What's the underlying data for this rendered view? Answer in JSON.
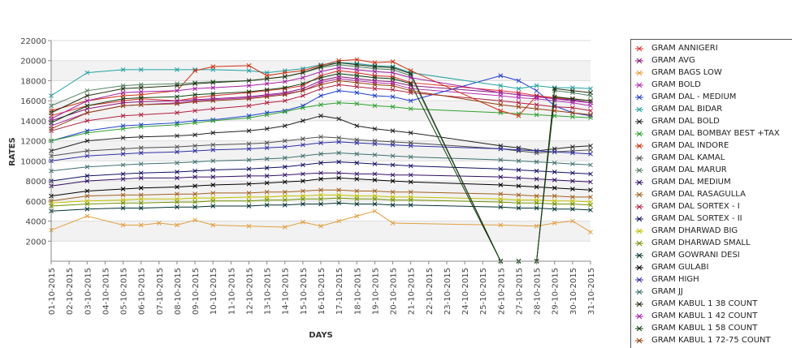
{
  "chart_data": {
    "type": "line",
    "title": "",
    "xlabel": "DAYS",
    "ylabel": "RATES",
    "ylim": [
      0,
      22000
    ],
    "yticks": [
      "2000",
      "4000",
      "6000",
      "8000",
      "10000",
      "12000",
      "14000",
      "16000",
      "18000",
      "20000",
      "22000"
    ],
    "x": [
      "01-10-2015",
      "02-10-2015",
      "03-10-2015",
      "04-10-2015",
      "05-10-2015",
      "06-10-2015",
      "07-10-2015",
      "08-10-2015",
      "09-10-2015",
      "10-10-2015",
      "11-10-2015",
      "12-10-2015",
      "13-10-2015",
      "14-10-2015",
      "15-10-2015",
      "16-10-2015",
      "17-10-2015",
      "18-10-2015",
      "19-10-2015",
      "20-10-2015",
      "21-10-2015",
      "22-10-2015",
      "23-10-2015",
      "24-10-2015",
      "25-10-2015",
      "26-10-2015",
      "27-10-2015",
      "28-10-2015",
      "29-10-2015",
      "30-10-2015",
      "31-10-2015"
    ],
    "grid": "horizontal",
    "legend_position": "right",
    "series": [
      {
        "name": "GRAM ANNIGERI",
        "color": "#e03030",
        "values": [
          14500,
          null,
          15500,
          null,
          16000,
          16200,
          null,
          16000,
          16300,
          16500,
          null,
          16800,
          17000,
          17200,
          17500,
          18500,
          19000,
          18800,
          18500,
          18400,
          17800,
          null,
          null,
          null,
          null,
          17000,
          16800,
          16500,
          16300,
          16200,
          16000
        ]
      },
      {
        "name": "GRAM AVG",
        "color": "#8a1a7a",
        "values": [
          14000,
          null,
          15200,
          null,
          15800,
          15900,
          null,
          16000,
          16100,
          16200,
          null,
          16400,
          16600,
          16800,
          17200,
          18000,
          18400,
          18200,
          18000,
          17900,
          17500,
          null,
          null,
          null,
          null,
          16800,
          16600,
          16400,
          16200,
          16100,
          15800
        ]
      },
      {
        "name": "GRAM BAGS LOW",
        "color": "#e0a040",
        "values": [
          3100,
          null,
          4500,
          null,
          3600,
          3600,
          3800,
          3600,
          4100,
          3600,
          null,
          3500,
          null,
          3400,
          3900,
          3500,
          4000,
          4500,
          5000,
          3800,
          null,
          null,
          null,
          null,
          null,
          3600,
          null,
          3500,
          3800,
          4000,
          2900
        ]
      },
      {
        "name": "GRAM BOLD",
        "color": "#b030b0",
        "values": [
          13500,
          null,
          14800,
          null,
          15500,
          15600,
          null,
          15800,
          16000,
          16100,
          null,
          16300,
          16500,
          16700,
          17000,
          17800,
          18200,
          18000,
          17800,
          17700,
          17200,
          null,
          null,
          null,
          null,
          16500,
          16300,
          16200,
          16000,
          15800,
          15500
        ]
      },
      {
        "name": "GRAM DAL - MEDIUM",
        "color": "#2040d0",
        "values": [
          12000,
          null,
          13000,
          null,
          13500,
          13600,
          null,
          13800,
          14000,
          14100,
          null,
          14500,
          14800,
          15000,
          15500,
          16500,
          17000,
          16800,
          16500,
          16400,
          16000,
          null,
          null,
          null,
          null,
          18500,
          18000,
          17000,
          15500,
          14800,
          14500
        ]
      },
      {
        "name": "GRAM DAL BIDAR",
        "color": "#20a0a0",
        "values": [
          16500,
          null,
          18800,
          null,
          19100,
          19100,
          null,
          19100,
          19100,
          19100,
          null,
          19000,
          18800,
          19000,
          19200,
          19600,
          19800,
          19700,
          19500,
          19400,
          18800,
          null,
          null,
          null,
          null,
          17500,
          17200,
          17500,
          17300,
          17300,
          17200
        ]
      },
      {
        "name": "GRAM DAL BOLD",
        "color": "#202020",
        "values": [
          11000,
          null,
          12000,
          null,
          12300,
          12400,
          null,
          12500,
          12600,
          12800,
          null,
          13000,
          13200,
          13500,
          14000,
          14500,
          14200,
          13500,
          13200,
          13000,
          12800,
          null,
          null,
          null,
          null,
          11500,
          11300,
          11000,
          11200,
          11400,
          11500
        ]
      },
      {
        "name": "GRAM DAL BOMBAY BEST +TAX",
        "color": "#30a030",
        "values": [
          12000,
          null,
          12800,
          null,
          13200,
          13400,
          null,
          13600,
          13800,
          14000,
          null,
          14300,
          14600,
          14900,
          15300,
          15600,
          15800,
          15700,
          15500,
          15400,
          15200,
          null,
          null,
          null,
          null,
          14800,
          14700,
          14600,
          14500,
          14400,
          14300
        ]
      },
      {
        "name": "GRAM DAL INDORE",
        "color": "#d03010",
        "values": [
          15000,
          null,
          16000,
          null,
          16500,
          16600,
          null,
          17000,
          19000,
          19400,
          null,
          19500,
          18500,
          18800,
          19000,
          19500,
          20000,
          20100,
          19800,
          19900,
          19000,
          null,
          null,
          null,
          null,
          15000,
          14500,
          16500,
          16300,
          16200,
          16000
        ]
      },
      {
        "name": "GRAM DAL KAMAL",
        "color": "#505050",
        "values": [
          10500,
          null,
          11000,
          null,
          11200,
          11300,
          null,
          11400,
          11500,
          11600,
          null,
          11700,
          11800,
          12000,
          12200,
          12400,
          12300,
          12100,
          12000,
          11900,
          11800,
          null,
          null,
          null,
          null,
          11200,
          11000,
          10800,
          10900,
          11000,
          11100
        ]
      },
      {
        "name": "GRAM DAL MARUR",
        "color": "#508060",
        "values": [
          15500,
          null,
          17000,
          null,
          17500,
          17600,
          null,
          17700,
          17800,
          17900,
          null,
          18000,
          18200,
          18400,
          18800,
          19300,
          19600,
          19400,
          19200,
          19100,
          18500,
          null,
          null,
          null,
          null,
          0,
          0,
          0,
          17000,
          16800,
          16500
        ]
      },
      {
        "name": "GRAM DAL MEDIUM",
        "color": "#301060",
        "values": [
          7500,
          null,
          8000,
          null,
          8200,
          8300,
          null,
          8300,
          8400,
          8400,
          null,
          8500,
          8500,
          8600,
          8700,
          8800,
          8800,
          8700,
          8700,
          8600,
          8600,
          null,
          null,
          null,
          null,
          8400,
          8300,
          8200,
          8100,
          8000,
          7900
        ]
      },
      {
        "name": "GRAM DAL RASAGULLA",
        "color": "#a06020",
        "values": [
          6000,
          null,
          6500,
          null,
          6600,
          6600,
          null,
          6700,
          6700,
          6800,
          null,
          6800,
          6900,
          6900,
          7000,
          7100,
          7100,
          7000,
          7000,
          6900,
          6900,
          null,
          null,
          null,
          null,
          6700,
          6600,
          6500,
          6500,
          6400,
          6400
        ]
      },
      {
        "name": "GRAM DAL SORTEX - I",
        "color": "#b02040",
        "values": [
          13000,
          null,
          14000,
          null,
          14500,
          14600,
          null,
          14800,
          15000,
          15200,
          null,
          15500,
          15800,
          16000,
          16500,
          17200,
          17600,
          17400,
          17200,
          17100,
          16800,
          null,
          null,
          null,
          null,
          16000,
          15800,
          15600,
          15400,
          15300,
          15000
        ]
      },
      {
        "name": "GRAM DAL SORTEX - II",
        "color": "#101060",
        "values": [
          8000,
          null,
          8500,
          null,
          8700,
          8800,
          null,
          8900,
          9000,
          9100,
          null,
          9200,
          9300,
          9400,
          9600,
          9800,
          9900,
          9800,
          9700,
          9600,
          9500,
          null,
          null,
          null,
          null,
          9200,
          9100,
          9000,
          8900,
          8800,
          8700
        ]
      },
      {
        "name": "GRAM DHARWAD BIG",
        "color": "#c0c000",
        "values": [
          5800,
          null,
          6000,
          null,
          6100,
          6200,
          null,
          6200,
          6300,
          6300,
          null,
          6400,
          6400,
          6500,
          6500,
          6600,
          6600,
          6500,
          6500,
          6400,
          6400,
          null,
          null,
          null,
          null,
          6200,
          6100,
          6100,
          6000,
          6000,
          5900
        ]
      },
      {
        "name": "GRAM DHARWAD SMALL",
        "color": "#709000",
        "values": [
          5500,
          null,
          5700,
          null,
          5800,
          5800,
          null,
          5900,
          5900,
          6000,
          null,
          6000,
          6100,
          6100,
          6200,
          6200,
          6300,
          6200,
          6200,
          6100,
          6100,
          null,
          null,
          null,
          null,
          5900,
          5800,
          5800,
          5700,
          5700,
          5600
        ]
      },
      {
        "name": "GRAM GOWRANI DESI",
        "color": "#003030",
        "values": [
          5000,
          null,
          5200,
          null,
          5300,
          5300,
          null,
          5400,
          5400,
          5500,
          null,
          5500,
          5600,
          5600,
          5700,
          5700,
          5800,
          5700,
          5700,
          5600,
          5600,
          null,
          null,
          null,
          null,
          5400,
          5300,
          5300,
          5200,
          5200,
          5100
        ]
      },
      {
        "name": "GRAM GULABI",
        "color": "#000000",
        "values": [
          6500,
          null,
          7000,
          null,
          7200,
          7300,
          null,
          7400,
          7500,
          7600,
          null,
          7700,
          7800,
          7900,
          8000,
          8200,
          8300,
          8200,
          8100,
          8000,
          7900,
          null,
          null,
          null,
          null,
          7600,
          7500,
          7400,
          7300,
          7200,
          7100
        ]
      },
      {
        "name": "GRAM HIGH",
        "color": "#3030a0",
        "values": [
          10000,
          null,
          10500,
          null,
          10700,
          10800,
          null,
          10900,
          11000,
          11100,
          null,
          11200,
          11300,
          11400,
          11600,
          11800,
          11900,
          11800,
          11700,
          11600,
          11500,
          null,
          null,
          null,
          null,
          11200,
          11100,
          11000,
          10900,
          10800,
          10700
        ]
      },
      {
        "name": "GRAM JJ",
        "color": "#407070",
        "values": [
          9000,
          null,
          9400,
          null,
          9600,
          9700,
          null,
          9800,
          9900,
          10000,
          null,
          10100,
          10200,
          10300,
          10500,
          10700,
          10800,
          10700,
          10600,
          10500,
          10400,
          null,
          null,
          null,
          null,
          10100,
          10000,
          9900,
          9800,
          9700,
          9600
        ]
      },
      {
        "name": "GRAM KABUL 1 38 COUNT",
        "color": "#203010",
        "values": [
          14800,
          null,
          16500,
          null,
          17200,
          17300,
          null,
          17500,
          17700,
          17800,
          null,
          18000,
          18200,
          18400,
          18800,
          19400,
          19800,
          19600,
          19400,
          19300,
          18700,
          null,
          null,
          null,
          null,
          0,
          0,
          0,
          17200,
          17000,
          16800
        ]
      },
      {
        "name": "GRAM KABUL 1 42 COUNT",
        "color": "#a020a0",
        "values": [
          14200,
          null,
          16000,
          null,
          16800,
          16900,
          null,
          17000,
          17200,
          17300,
          null,
          17500,
          17700,
          17900,
          18300,
          18900,
          19300,
          19100,
          18900,
          18800,
          18300,
          null,
          null,
          null,
          null,
          16800,
          16600,
          16400,
          16200,
          16000,
          15800
        ]
      },
      {
        "name": "GRAM KABUL 1 58 COUNT",
        "color": "#104010",
        "values": [
          13800,
          null,
          15500,
          null,
          16200,
          16300,
          null,
          16400,
          16600,
          16700,
          null,
          16900,
          17100,
          17300,
          17700,
          18300,
          18700,
          18500,
          18300,
          18200,
          17700,
          null,
          null,
          null,
          null,
          0,
          0,
          0,
          16400,
          16200,
          16000
        ]
      },
      {
        "name": "GRAM KABUL 1 72-75 COUNT",
        "color": "#904010",
        "values": [
          13200,
          null,
          14800,
          null,
          15500,
          15600,
          null,
          15700,
          15900,
          16000,
          null,
          16200,
          16400,
          16600,
          17000,
          17600,
          18000,
          17800,
          17600,
          17500,
          17000,
          null,
          null,
          null,
          null,
          15600,
          15400,
          15200,
          15000,
          14800,
          14600
        ]
      }
    ]
  }
}
